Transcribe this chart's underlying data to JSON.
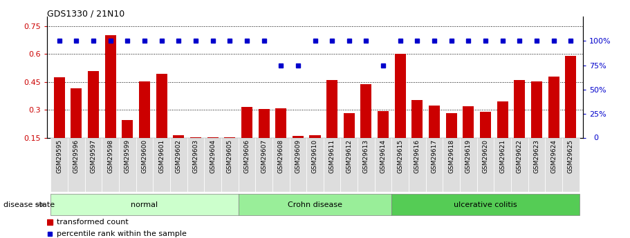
{
  "title": "GDS1330 / 21N10",
  "samples": [
    "GSM29595",
    "GSM29596",
    "GSM29597",
    "GSM29598",
    "GSM29599",
    "GSM29600",
    "GSM29601",
    "GSM29602",
    "GSM29603",
    "GSM29604",
    "GSM29605",
    "GSM29606",
    "GSM29607",
    "GSM29608",
    "GSM29609",
    "GSM29610",
    "GSM29611",
    "GSM29612",
    "GSM29613",
    "GSM29614",
    "GSM29615",
    "GSM29616",
    "GSM29617",
    "GSM29618",
    "GSM29619",
    "GSM29620",
    "GSM29621",
    "GSM29622",
    "GSM29623",
    "GSM29624",
    "GSM29625"
  ],
  "bar_values": [
    0.475,
    0.415,
    0.51,
    0.7,
    0.245,
    0.455,
    0.495,
    0.165,
    0.155,
    0.155,
    0.155,
    0.315,
    0.305,
    0.31,
    0.16,
    0.165,
    0.46,
    0.285,
    0.44,
    0.295,
    0.6,
    0.355,
    0.325,
    0.285,
    0.32,
    0.29,
    0.345,
    0.46,
    0.455,
    0.48,
    0.59
  ],
  "percentile_values": [
    100,
    100,
    100,
    100,
    100,
    100,
    100,
    100,
    100,
    100,
    100,
    100,
    100,
    75,
    75,
    100,
    100,
    100,
    100,
    75,
    100,
    100,
    100,
    100,
    100,
    100,
    100,
    100,
    100,
    100,
    100
  ],
  "groups": [
    {
      "label": "normal",
      "start": 0,
      "end": 10,
      "color": "#ccffcc"
    },
    {
      "label": "Crohn disease",
      "start": 11,
      "end": 19,
      "color": "#99ee99"
    },
    {
      "label": "ulcerative colitis",
      "start": 20,
      "end": 30,
      "color": "#55cc55"
    }
  ],
  "bar_color": "#cc0000",
  "percentile_color": "#0000cc",
  "ylim_left": [
    0.15,
    0.8
  ],
  "ylim_right": [
    0,
    125
  ],
  "yticks_left": [
    0.15,
    0.3,
    0.45,
    0.6,
    0.75
  ],
  "yticks_right": [
    0,
    25,
    50,
    75,
    100
  ],
  "disease_state_label": "disease state",
  "legend_bar": "transformed count",
  "legend_dot": "percentile rank within the sample",
  "background_color": "#ffffff",
  "xtick_bg": "#dddddd"
}
